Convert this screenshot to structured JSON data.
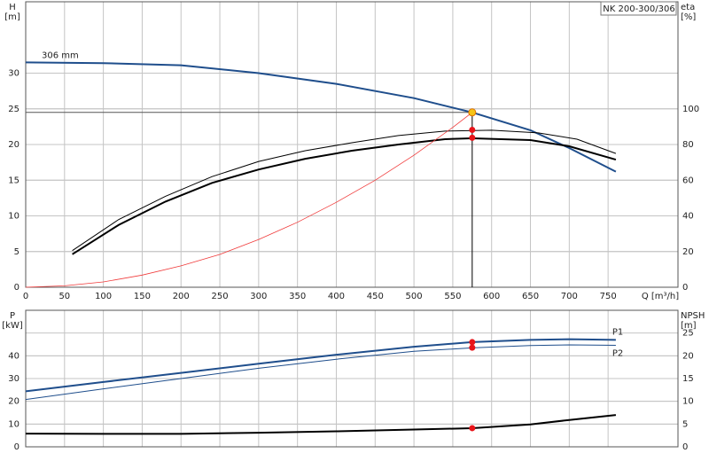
{
  "chart_data": [
    {
      "type": "line",
      "x_label": "Q [m³/h]",
      "y_label": "H",
      "y_unit": "[m]",
      "y2_label": "eta",
      "y2_unit": "[%]",
      "badge": "NK 200-300/306",
      "xlim": [
        0,
        840
      ],
      "xticks": [
        0,
        50,
        100,
        150,
        200,
        250,
        300,
        350,
        400,
        450,
        500,
        550,
        600,
        650,
        700,
        750
      ],
      "ylim": [
        0,
        40
      ],
      "yticks": [
        0,
        5,
        10,
        15,
        20,
        25,
        30
      ],
      "y2lim": [
        0,
        160
      ],
      "y2ticks": [
        0,
        20,
        40,
        60,
        80,
        100
      ],
      "grid": true,
      "series": [
        {
          "name": "306 mm",
          "color": "#1f4e8c",
          "width": 2,
          "x": [
            0,
            100,
            200,
            300,
            400,
            500,
            575,
            650,
            700,
            760
          ],
          "values": [
            31.5,
            31.4,
            31.1,
            30.0,
            28.5,
            26.5,
            24.5,
            22.0,
            19.5,
            16.2
          ]
        },
        {
          "color": "#000000",
          "width": 2,
          "axis": "y2",
          "x": [
            60,
            120,
            180,
            240,
            300,
            360,
            420,
            480,
            540,
            575,
            650,
            700,
            760
          ],
          "values": [
            18.5,
            35,
            48,
            58.5,
            66,
            72,
            76.5,
            80,
            83,
            83.5,
            82.5,
            79,
            71.5
          ]
        },
        {
          "color": "#000000",
          "width": 1,
          "axis": "y2",
          "x": [
            60,
            120,
            180,
            240,
            300,
            360,
            420,
            480,
            540,
            600,
            660,
            710,
            760
          ],
          "values": [
            20.5,
            38,
            51,
            62,
            70.5,
            76.5,
            81,
            85,
            87.5,
            88,
            86.5,
            83,
            75
          ]
        },
        {
          "color": "#f03a3a",
          "width": 0.8,
          "x": [
            0,
            50,
            100,
            150,
            200,
            250,
            300,
            350,
            400,
            450,
            500,
            550,
            575
          ],
          "values": [
            0,
            0.2,
            0.74,
            1.7,
            3.0,
            4.6,
            6.7,
            9.1,
            11.9,
            15.0,
            18.5,
            22.4,
            24.5
          ]
        },
        {
          "marker": "dot",
          "color": "#e8141a",
          "axis": "y2",
          "x": [
            575,
            575
          ],
          "values": [
            88.2,
            83.8
          ]
        }
      ],
      "duty_point": {
        "x": 575,
        "y": 24.5,
        "color": "#f5c518"
      }
    },
    {
      "type": "line",
      "y_label": "P",
      "y_unit": "[kW]",
      "y2_label": "NPSH",
      "y2_unit": "[m]",
      "xlim": [
        0,
        840
      ],
      "ylim": [
        0,
        60
      ],
      "yticks": [
        0,
        10,
        20,
        30,
        40
      ],
      "y2lim": [
        0,
        30
      ],
      "y2ticks": [
        0,
        5,
        10,
        15,
        20,
        25
      ],
      "grid": true,
      "series": [
        {
          "name": "P1",
          "color": "#1f4e8c",
          "width": 2,
          "x": [
            0,
            100,
            200,
            300,
            400,
            500,
            575,
            650,
            700,
            760
          ],
          "values": [
            24.4,
            28.5,
            32.5,
            36.5,
            40.5,
            44,
            46,
            47,
            47.3,
            47
          ]
        },
        {
          "name": "P2",
          "color": "#1f4e8c",
          "width": 1,
          "x": [
            0,
            100,
            200,
            300,
            400,
            500,
            575,
            650,
            700,
            760
          ],
          "values": [
            20.8,
            25.5,
            30,
            34.5,
            38.5,
            42,
            43.5,
            44.5,
            44.8,
            44.6
          ]
        },
        {
          "color": "#000000",
          "width": 2,
          "axis": "y2",
          "x": [
            0,
            100,
            200,
            300,
            400,
            500,
            575,
            650,
            700,
            760
          ],
          "values": [
            2.9,
            2.85,
            2.85,
            3.1,
            3.4,
            3.8,
            4.1,
            4.9,
            5.9,
            7.0
          ]
        },
        {
          "marker": "dot",
          "color": "#e8141a",
          "x": [
            575,
            575
          ],
          "values": [
            46,
            43.6
          ]
        },
        {
          "marker": "dot",
          "color": "#e8141a",
          "axis": "y2",
          "x": [
            575
          ],
          "values": [
            4.1
          ]
        }
      ]
    }
  ]
}
